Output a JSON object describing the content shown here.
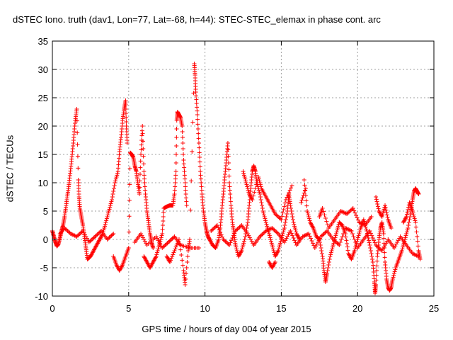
{
  "chart_data": {
    "type": "scatter",
    "title": "dSTEC Iono. truth (dav1, Lon=77, Lat=-68, h=44): STEC-STEC_elemax in phase cont. arc",
    "xlabel": "GPS time / hours of day 004 of year 2015",
    "ylabel": "dSTEC  / TECUs",
    "xlim": [
      0,
      25
    ],
    "ylim": [
      -10,
      35
    ],
    "xticks": [
      "0",
      "5",
      "10",
      "15",
      "20",
      "25"
    ],
    "yticks": [
      "-10",
      "-5",
      "0",
      "5",
      "10",
      "15",
      "20",
      "25",
      "30",
      "35"
    ],
    "grid": true,
    "marker": "+",
    "color": "#ff0000",
    "series": [
      {
        "points": [
          [
            0.0,
            1.5
          ],
          [
            0.1,
            0.5
          ],
          [
            0.2,
            -0.5
          ],
          [
            0.3,
            -1.2
          ],
          [
            0.4,
            -0.8
          ],
          [
            0.5,
            0.3
          ],
          [
            0.6,
            1.5
          ],
          [
            0.7,
            2.5
          ],
          [
            0.8,
            4.0
          ],
          [
            0.9,
            6.0
          ],
          [
            1.0,
            8.0
          ],
          [
            1.1,
            10.0
          ],
          [
            1.2,
            12.5
          ],
          [
            1.3,
            15.0
          ],
          [
            1.4,
            18.0
          ],
          [
            1.5,
            21.0
          ],
          [
            1.6,
            23.0
          ],
          [
            1.7,
            10.5
          ],
          [
            1.75,
            7.5
          ],
          [
            1.8,
            5.5
          ],
          [
            1.9,
            4.0
          ],
          [
            2.0,
            2.5
          ],
          [
            2.1,
            0.5
          ],
          [
            2.2,
            -1.5
          ],
          [
            2.3,
            -3.5
          ],
          [
            2.5,
            -3.0
          ],
          [
            2.7,
            -2.0
          ],
          [
            2.9,
            -1.0
          ],
          [
            3.1,
            0.0
          ],
          [
            3.3,
            1.0
          ],
          [
            3.5,
            3.0
          ],
          [
            3.7,
            5.0
          ],
          [
            3.9,
            7.0
          ],
          [
            4.1,
            10.0
          ],
          [
            4.3,
            12.0
          ],
          [
            4.4,
            15.5
          ],
          [
            4.5,
            18.0
          ],
          [
            4.6,
            21.0
          ],
          [
            4.7,
            23.0
          ],
          [
            4.8,
            24.5
          ],
          [
            4.85,
            20.0
          ],
          [
            4.9,
            17.0
          ],
          [
            4.0,
            -3.0
          ],
          [
            4.2,
            -4.5
          ],
          [
            4.4,
            -5.5
          ],
          [
            4.6,
            -4.5
          ],
          [
            4.8,
            -3.0
          ],
          [
            5.0,
            -1.5
          ],
          [
            5.1,
            15.3
          ],
          [
            5.2,
            15.0
          ],
          [
            5.3,
            14.5
          ],
          [
            5.4,
            13.0
          ],
          [
            5.5,
            12.0
          ],
          [
            5.6,
            10.0
          ],
          [
            5.7,
            8.0
          ],
          [
            5.8,
            15.0
          ],
          [
            5.9,
            20.0
          ],
          [
            6.0,
            12.0
          ],
          [
            6.1,
            8.0
          ],
          [
            6.2,
            5.0
          ],
          [
            6.3,
            3.0
          ],
          [
            6.4,
            1.0
          ],
          [
            6.5,
            -0.5
          ],
          [
            6.6,
            -1.5
          ],
          [
            6.0,
            -3.0
          ],
          [
            6.2,
            -4.0
          ],
          [
            6.4,
            -5.0
          ],
          [
            6.6,
            -4.0
          ],
          [
            6.8,
            -3.0
          ],
          [
            7.0,
            -1.0
          ],
          [
            7.2,
            1.0
          ],
          [
            7.3,
            5.5
          ],
          [
            7.5,
            5.8
          ],
          [
            7.7,
            6.0
          ],
          [
            7.9,
            6.0
          ],
          [
            8.0,
            8.0
          ],
          [
            8.1,
            12.0
          ],
          [
            8.15,
            21.0
          ],
          [
            8.2,
            22.5
          ],
          [
            8.3,
            22.0
          ],
          [
            8.4,
            21.5
          ],
          [
            8.5,
            20.0
          ],
          [
            8.6,
            14.0
          ],
          [
            8.7,
            10.0
          ],
          [
            8.8,
            6.0
          ],
          [
            7.5,
            -3.0
          ],
          [
            7.7,
            -4.0
          ],
          [
            8.0,
            -2.0
          ],
          [
            8.3,
            0.0
          ],
          [
            8.6,
            -5.5
          ],
          [
            8.7,
            -8.0
          ],
          [
            8.9,
            -2.0
          ],
          [
            9.0,
            0.0
          ],
          [
            9.3,
            31.0
          ],
          [
            9.35,
            29.0
          ],
          [
            9.4,
            26.0
          ],
          [
            9.5,
            22.0
          ],
          [
            9.6,
            17.0
          ],
          [
            9.7,
            12.0
          ],
          [
            9.8,
            8.0
          ],
          [
            9.9,
            5.0
          ],
          [
            10.0,
            3.0
          ],
          [
            10.1,
            1.5
          ],
          [
            10.2,
            0.5
          ],
          [
            10.3,
            0.0
          ],
          [
            10.5,
            -1.0
          ],
          [
            10.7,
            -1.5
          ],
          [
            10.9,
            0.0
          ],
          [
            11.0,
            2.0
          ],
          [
            11.1,
            5.0
          ],
          [
            11.2,
            8.0
          ],
          [
            11.3,
            11.0
          ],
          [
            11.4,
            14.0
          ],
          [
            11.5,
            17.0
          ],
          [
            11.6,
            10.0
          ],
          [
            11.7,
            6.0
          ],
          [
            11.8,
            3.0
          ],
          [
            11.9,
            1.0
          ],
          [
            12.0,
            -1.0
          ],
          [
            12.2,
            -3.0
          ],
          [
            12.4,
            -2.0
          ],
          [
            12.6,
            0.0
          ],
          [
            12.8,
            3.0
          ],
          [
            12.9,
            6.0
          ],
          [
            13.0,
            9.0
          ],
          [
            13.1,
            12.0
          ],
          [
            13.2,
            13.0
          ],
          [
            13.3,
            12.0
          ],
          [
            13.4,
            10.0
          ],
          [
            13.6,
            8.0
          ],
          [
            13.8,
            5.0
          ],
          [
            14.0,
            3.0
          ],
          [
            14.2,
            1.0
          ],
          [
            14.4,
            -1.0
          ],
          [
            14.6,
            -3.0
          ],
          [
            14.8,
            -2.0
          ],
          [
            15.0,
            0.0
          ],
          [
            15.2,
            2.0
          ],
          [
            15.4,
            5.0
          ],
          [
            15.5,
            8.0
          ],
          [
            15.6,
            6.0
          ],
          [
            15.8,
            3.0
          ],
          [
            16.0,
            1.0
          ],
          [
            16.2,
            0.0
          ],
          [
            14.2,
            -4.0
          ],
          [
            14.4,
            -5.0
          ],
          [
            14.6,
            -4.0
          ],
          [
            16.5,
            10.5
          ],
          [
            16.7,
            5.0
          ],
          [
            16.9,
            3.0
          ],
          [
            17.1,
            2.0
          ],
          [
            17.3,
            0.5
          ],
          [
            17.5,
            0.0
          ],
          [
            17.7,
            -3.0
          ],
          [
            17.8,
            -5.5
          ],
          [
            17.9,
            -7.5
          ],
          [
            18.0,
            -6.0
          ],
          [
            18.2,
            -3.0
          ],
          [
            18.4,
            -1.0
          ],
          [
            18.6,
            1.0
          ],
          [
            18.8,
            3.0
          ],
          [
            19.0,
            2.5
          ],
          [
            19.2,
            1.0
          ],
          [
            19.4,
            -2.5
          ],
          [
            19.6,
            -3.5
          ],
          [
            19.8,
            -2.0
          ],
          [
            20.0,
            0.0
          ],
          [
            20.2,
            2.0
          ],
          [
            20.4,
            3.5
          ],
          [
            20.6,
            1.5
          ],
          [
            20.8,
            -1.0
          ],
          [
            21.0,
            -4.0
          ],
          [
            21.1,
            -7.5
          ],
          [
            21.15,
            -9.5
          ],
          [
            21.2,
            -8.0
          ],
          [
            21.3,
            -3.0
          ],
          [
            21.4,
            0.0
          ],
          [
            21.5,
            2.0
          ],
          [
            21.6,
            3.0
          ],
          [
            21.7,
            1.0
          ],
          [
            21.8,
            -4.0
          ],
          [
            21.9,
            -7.0
          ],
          [
            22.0,
            -8.5
          ],
          [
            22.1,
            -9.0
          ],
          [
            22.2,
            -8.5
          ],
          [
            22.3,
            -7.0
          ],
          [
            22.5,
            -5.0
          ],
          [
            22.7,
            -3.5
          ],
          [
            22.9,
            -2.0
          ],
          [
            23.1,
            0.0
          ],
          [
            23.3,
            2.0
          ],
          [
            23.5,
            5.0
          ],
          [
            23.6,
            7.0
          ],
          [
            23.7,
            8.5
          ],
          [
            23.8,
            9.0
          ],
          [
            23.9,
            8.5
          ],
          [
            24.0,
            8.0
          ],
          [
            21.2,
            7.5
          ],
          [
            21.4,
            5.0
          ],
          [
            21.6,
            4.0
          ],
          [
            21.8,
            6.0
          ],
          [
            22.0,
            3.5
          ],
          [
            22.2,
            2.0
          ],
          [
            23.0,
            3.0
          ],
          [
            23.2,
            4.0
          ],
          [
            23.4,
            6.5
          ],
          [
            23.6,
            5.0
          ],
          [
            23.8,
            3.0
          ],
          [
            24.0,
            -2.0
          ],
          [
            24.1,
            -3.5
          ],
          [
            0.5,
            1.0
          ],
          [
            0.8,
            2.0
          ],
          [
            1.2,
            1.0
          ],
          [
            1.6,
            0.5
          ],
          [
            2.0,
            1.5
          ],
          [
            2.4,
            -0.5
          ],
          [
            2.8,
            0.5
          ],
          [
            3.2,
            1.5
          ],
          [
            3.6,
            0.0
          ],
          [
            4.0,
            1.0
          ],
          [
            5.4,
            -0.5
          ],
          [
            5.8,
            1.0
          ],
          [
            6.2,
            -1.0
          ],
          [
            6.8,
            0.5
          ],
          [
            7.2,
            -1.5
          ],
          [
            7.6,
            -0.5
          ],
          [
            8.0,
            0.5
          ],
          [
            8.4,
            -1.0
          ],
          [
            9.0,
            -1.5
          ],
          [
            9.6,
            -1.5
          ],
          [
            10.4,
            1.5
          ],
          [
            10.8,
            2.5
          ],
          [
            11.2,
            0.0
          ],
          [
            11.6,
            -1.0
          ],
          [
            12.0,
            1.5
          ],
          [
            12.4,
            2.5
          ],
          [
            12.8,
            1.0
          ],
          [
            13.2,
            -1.0
          ],
          [
            13.6,
            0.5
          ],
          [
            14.0,
            1.5
          ],
          [
            14.4,
            2.0
          ],
          [
            14.8,
            1.0
          ],
          [
            15.2,
            -0.5
          ],
          [
            15.6,
            1.5
          ],
          [
            16.0,
            -1.0
          ],
          [
            16.4,
            0.5
          ],
          [
            16.8,
            1.0
          ],
          [
            17.2,
            -1.5
          ],
          [
            17.6,
            0.5
          ],
          [
            18.0,
            1.5
          ],
          [
            18.4,
            0.0
          ],
          [
            18.8,
            -1.0
          ],
          [
            19.2,
            2.0
          ],
          [
            19.6,
            1.5
          ],
          [
            20.0,
            -1.5
          ],
          [
            20.4,
            0.0
          ],
          [
            20.8,
            1.5
          ],
          [
            21.2,
            -1.0
          ],
          [
            21.6,
            -2.0
          ],
          [
            22.0,
            0.0
          ],
          [
            22.4,
            -1.5
          ],
          [
            22.8,
            0.5
          ],
          [
            23.2,
            -1.0
          ],
          [
            23.6,
            -2.5
          ],
          [
            24.0,
            -3.0
          ],
          [
            12.5,
            12.0
          ],
          [
            12.7,
            10.0
          ],
          [
            12.9,
            8.0
          ],
          [
            13.1,
            7.0
          ],
          [
            13.5,
            11.0
          ],
          [
            13.7,
            9.0
          ],
          [
            14.0,
            7.5
          ],
          [
            14.3,
            6.0
          ],
          [
            14.6,
            4.5
          ],
          [
            15.0,
            3.5
          ],
          [
            15.3,
            7.0
          ],
          [
            15.7,
            9.5
          ],
          [
            16.3,
            6.5
          ],
          [
            16.6,
            9.0
          ],
          [
            17.5,
            4.0
          ],
          [
            17.7,
            5.5
          ],
          [
            18.1,
            2.0
          ],
          [
            18.5,
            3.5
          ],
          [
            18.9,
            5.0
          ],
          [
            19.3,
            4.5
          ],
          [
            19.7,
            5.5
          ],
          [
            20.1,
            3.0
          ],
          [
            20.5,
            2.5
          ],
          [
            20.9,
            4.0
          ]
        ]
      }
    ]
  }
}
